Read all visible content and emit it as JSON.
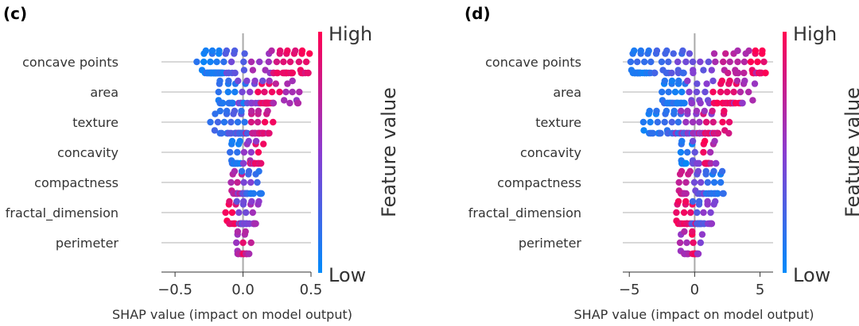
{
  "chart_data": [
    {
      "panel_label": "(c)",
      "type": "scatter",
      "subtype": "shap-beeswarm",
      "features": [
        "concave points",
        "area",
        "texture",
        "concavity",
        "compactness",
        "fractal_dimension",
        "perimeter"
      ],
      "xlabel": "SHAP value (impact on model output)",
      "xlim": [
        -0.6,
        0.5
      ],
      "xticks": [
        -0.5,
        0.0,
        0.5
      ],
      "xtick_labels": [
        "−0.5",
        "0.0",
        "0.5"
      ],
      "colorbar": {
        "label": "Feature value",
        "high": "High",
        "low": "Low",
        "low_color": "#008bfb",
        "high_color": "#ff0052"
      },
      "grid": false,
      "distributions": [
        {
          "feature": "concave points",
          "min": -0.34,
          "max": 0.49,
          "clusters": [
            {
              "center": -0.22,
              "spread": 0.05,
              "n": 70,
              "color": 0.1
            },
            {
              "center": -0.05,
              "spread": 0.09,
              "n": 14,
              "color": 0.35
            },
            {
              "center": 0.15,
              "spread": 0.06,
              "n": 10,
              "color": 0.6
            },
            {
              "center": 0.33,
              "spread": 0.07,
              "n": 30,
              "color": 0.88
            },
            {
              "center": 0.45,
              "spread": 0.03,
              "n": 8,
              "color": 0.95
            }
          ]
        },
        {
          "feature": "area",
          "min": -0.18,
          "max": 0.43,
          "clusters": [
            {
              "center": -0.1,
              "spread": 0.05,
              "n": 28,
              "color": 0.15
            },
            {
              "center": 0.06,
              "spread": 0.05,
              "n": 18,
              "color": 0.45
            },
            {
              "center": 0.17,
              "spread": 0.04,
              "n": 28,
              "color": 0.9
            },
            {
              "center": 0.3,
              "spread": 0.06,
              "n": 10,
              "color": 0.65
            },
            {
              "center": 0.4,
              "spread": 0.02,
              "n": 3,
              "color": 0.6
            }
          ]
        },
        {
          "feature": "texture",
          "min": -0.24,
          "max": 0.26,
          "clusters": [
            {
              "center": -0.1,
              "spread": 0.08,
              "n": 26,
              "color": 0.18
            },
            {
              "center": -0.02,
              "spread": 0.04,
              "n": 28,
              "color": 0.3
            },
            {
              "center": 0.08,
              "spread": 0.05,
              "n": 28,
              "color": 0.75
            },
            {
              "center": 0.18,
              "spread": 0.05,
              "n": 14,
              "color": 0.9
            }
          ]
        },
        {
          "feature": "concavity",
          "min": -0.1,
          "max": 0.15,
          "clusters": [
            {
              "center": -0.06,
              "spread": 0.025,
              "n": 26,
              "color": 0.12
            },
            {
              "center": 0.05,
              "spread": 0.03,
              "n": 14,
              "color": 0.55
            },
            {
              "center": 0.1,
              "spread": 0.025,
              "n": 14,
              "color": 0.9
            }
          ]
        },
        {
          "feature": "compactness",
          "min": -0.09,
          "max": 0.15,
          "clusters": [
            {
              "center": -0.05,
              "spread": 0.025,
              "n": 16,
              "color": 0.7
            },
            {
              "center": 0.01,
              "spread": 0.025,
              "n": 14,
              "color": 0.45
            },
            {
              "center": 0.06,
              "spread": 0.03,
              "n": 18,
              "color": 0.15
            },
            {
              "center": 0.13,
              "spread": 0.015,
              "n": 4,
              "color": 0.1
            }
          ]
        },
        {
          "feature": "fractal_dimension",
          "min": -0.13,
          "max": 0.14,
          "clusters": [
            {
              "center": -0.08,
              "spread": 0.03,
              "n": 16,
              "color": 0.92
            },
            {
              "center": 0.0,
              "spread": 0.025,
              "n": 26,
              "color": 0.4
            },
            {
              "center": 0.08,
              "spread": 0.03,
              "n": 14,
              "color": 0.55
            }
          ]
        },
        {
          "feature": "perimeter",
          "min": -0.08,
          "max": 0.06,
          "clusters": [
            {
              "center": -0.04,
              "spread": 0.02,
              "n": 10,
              "color": 0.6
            },
            {
              "center": 0.01,
              "spread": 0.02,
              "n": 16,
              "color": 0.7
            },
            {
              "center": 0.0,
              "spread": 0.01,
              "n": 6,
              "color": 0.95
            }
          ]
        }
      ]
    },
    {
      "panel_label": "(d)",
      "type": "scatter",
      "subtype": "shap-beeswarm",
      "features": [
        "concave points",
        "area",
        "texture",
        "concavity",
        "compactness",
        "fractal_dimension",
        "perimeter"
      ],
      "xlabel": "SHAP value (impact on model output)",
      "xlim": [
        -5.5,
        6.0
      ],
      "xticks": [
        -5,
        0,
        5
      ],
      "xtick_labels": [
        "−5",
        "0",
        "5"
      ],
      "colorbar": {
        "label": "Feature value",
        "high": "High",
        "low": "Low",
        "low_color": "#008bfb",
        "high_color": "#ff0052"
      },
      "grid": false,
      "distributions": [
        {
          "feature": "concave points",
          "min": -4.9,
          "max": 5.7,
          "clusters": [
            {
              "center": -4.3,
              "spread": 0.45,
              "n": 40,
              "color": 0.1
            },
            {
              "center": -2.3,
              "spread": 1.0,
              "n": 24,
              "color": 0.25
            },
            {
              "center": 0.0,
              "spread": 0.8,
              "n": 10,
              "color": 0.4
            },
            {
              "center": 3.0,
              "spread": 0.9,
              "n": 20,
              "color": 0.7
            },
            {
              "center": 5.0,
              "spread": 0.4,
              "n": 22,
              "color": 0.95
            }
          ]
        },
        {
          "feature": "area",
          "min": -2.6,
          "max": 4.6,
          "clusters": [
            {
              "center": -1.5,
              "spread": 0.55,
              "n": 40,
              "color": 0.12
            },
            {
              "center": 0.3,
              "spread": 0.6,
              "n": 14,
              "color": 0.45
            },
            {
              "center": 2.4,
              "spread": 0.5,
              "n": 30,
              "color": 0.95
            },
            {
              "center": 3.8,
              "spread": 0.5,
              "n": 10,
              "color": 0.6
            }
          ]
        },
        {
          "feature": "texture",
          "min": -4.1,
          "max": 2.8,
          "clusters": [
            {
              "center": -3.0,
              "spread": 0.7,
              "n": 22,
              "color": 0.12
            },
            {
              "center": -1.2,
              "spread": 0.5,
              "n": 26,
              "color": 0.2
            },
            {
              "center": 0.0,
              "spread": 0.6,
              "n": 36,
              "color": 0.55
            },
            {
              "center": 1.6,
              "spread": 0.5,
              "n": 24,
              "color": 0.88
            }
          ]
        },
        {
          "feature": "concavity",
          "min": -1.2,
          "max": 1.8,
          "clusters": [
            {
              "center": -0.9,
              "spread": 0.25,
              "n": 16,
              "color": 0.1
            },
            {
              "center": 0.1,
              "spread": 0.3,
              "n": 8,
              "color": 0.4
            },
            {
              "center": 0.95,
              "spread": 0.12,
              "n": 18,
              "color": 0.95
            },
            {
              "center": 1.5,
              "spread": 0.15,
              "n": 6,
              "color": 0.6
            }
          ]
        },
        {
          "feature": "compactness",
          "min": -1.2,
          "max": 2.4,
          "clusters": [
            {
              "center": -0.8,
              "spread": 0.3,
              "n": 16,
              "color": 0.75
            },
            {
              "center": 0.3,
              "spread": 0.3,
              "n": 12,
              "color": 0.4
            },
            {
              "center": 1.4,
              "spread": 0.4,
              "n": 24,
              "color": 0.15
            },
            {
              "center": 2.3,
              "spread": 0.1,
              "n": 2,
              "color": 0.12
            }
          ]
        },
        {
          "feature": "fractal_dimension",
          "min": -1.4,
          "max": 1.9,
          "clusters": [
            {
              "center": -0.8,
              "spread": 0.4,
              "n": 24,
              "color": 0.92
            },
            {
              "center": 0.2,
              "spread": 0.3,
              "n": 30,
              "color": 0.3
            },
            {
              "center": 1.2,
              "spread": 0.3,
              "n": 14,
              "color": 0.5
            }
          ]
        },
        {
          "feature": "perimeter",
          "min": -1.2,
          "max": 0.6,
          "clusters": [
            {
              "center": -0.7,
              "spread": 0.25,
              "n": 14,
              "color": 0.6
            },
            {
              "center": 0.0,
              "spread": 0.12,
              "n": 14,
              "color": 0.95
            },
            {
              "center": 0.3,
              "spread": 0.15,
              "n": 6,
              "color": 0.5
            }
          ]
        }
      ]
    }
  ]
}
